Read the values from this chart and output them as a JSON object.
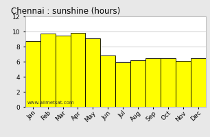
{
  "title": "Chennai : sunshine (hours)",
  "months": [
    "Jan",
    "Feb",
    "Mar",
    "Apr",
    "May",
    "Jun",
    "Jul",
    "Aug",
    "Sep",
    "Oct",
    "Nov",
    "Dec"
  ],
  "sunshine": [
    8.7,
    9.7,
    9.5,
    9.8,
    9.1,
    6.8,
    5.9,
    6.2,
    6.5,
    6.5,
    6.1,
    6.5
  ],
  "bar_color": "#FFFF00",
  "bar_edge_color": "#000000",
  "background_color": "#e8e8e8",
  "plot_bg_color": "#ffffff",
  "ylim": [
    0,
    12
  ],
  "yticks": [
    0,
    2,
    4,
    6,
    8,
    10,
    12
  ],
  "title_fontsize": 8.5,
  "tick_fontsize": 6.5,
  "watermark": "www.allmetsat.com"
}
